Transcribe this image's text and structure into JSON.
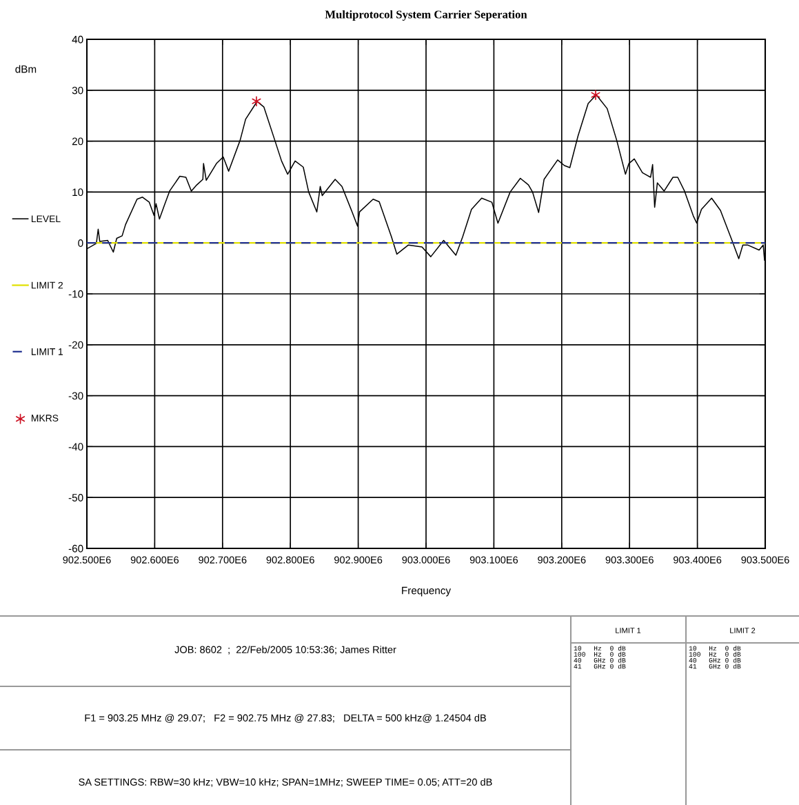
{
  "chart_data": {
    "type": "line",
    "title": "Multiprotocol System Carrier Seperation",
    "xlabel": "Frequency",
    "ylabel": "dBm",
    "xlim": [
      902500000,
      903500000
    ],
    "xticks": [
      {
        "value": 902500000,
        "label": "902.500E6"
      },
      {
        "value": 902600000,
        "label": "902.600E6"
      },
      {
        "value": 902700000,
        "label": "902.700E6"
      },
      {
        "value": 902800000,
        "label": "902.800E6"
      },
      {
        "value": 902900000,
        "label": "902.900E6"
      },
      {
        "value": 903000000,
        "label": "903.000E6"
      },
      {
        "value": 903100000,
        "label": "903.100E6"
      },
      {
        "value": 903200000,
        "label": "903.200E6"
      },
      {
        "value": 903300000,
        "label": "903.300E6"
      },
      {
        "value": 903400000,
        "label": "903.400E6"
      },
      {
        "value": 903500000,
        "label": "903.500E6"
      }
    ],
    "ylim": [
      -60,
      40
    ],
    "yticks": [
      -60,
      -50,
      -40,
      -30,
      -20,
      -10,
      0,
      10,
      20,
      30,
      40
    ],
    "grid": true,
    "legend": "left",
    "series": [
      {
        "name": "LEVEL",
        "color": "#000000",
        "line_style": "solid",
        "marker": "none",
        "x": [
          902500700,
          902514000,
          902516700,
          902519000,
          902530700,
          902539000,
          902544000,
          902552000,
          902557000,
          902574000,
          902582000,
          902592000,
          902599000,
          902602000,
          902607000,
          902614000,
          902622000,
          902637000,
          902646000,
          902654000,
          902662000,
          902671000,
          902672000,
          902676000,
          902691000,
          902701000,
          902709000,
          902726000,
          902734000,
          902751000,
          902761000,
          902777000,
          902787000,
          902796000,
          902807000,
          902819000,
          902827000,
          902839000,
          902844000,
          902847000,
          902866000,
          902876000,
          902891000,
          902899000,
          902902000,
          902922000,
          902931000,
          902949000,
          902957000,
          902974000,
          902994000,
          903007000,
          903026000,
          903044000,
          903054000,
          903067000,
          903082000,
          903097000,
          903106000,
          903124000,
          903139000,
          903151000,
          903157000,
          903166000,
          903174000,
          903194000,
          903204000,
          903212000,
          903224000,
          903239000,
          903251000,
          903267000,
          903281000,
          903294000,
          903299000,
          903307000,
          903319000,
          903331000,
          903334000,
          903337000,
          903341000,
          903351000,
          903364000,
          903371000,
          903381000,
          903394000,
          903399000,
          903406000,
          903421000,
          903434000,
          903451000,
          903461000,
          903467000,
          903474000,
          903491000,
          903497000,
          903499000
        ],
        "values": [
          -1.1,
          -0.1,
          2.7,
          0.3,
          0.5,
          -1.8,
          0.9,
          1.4,
          3.6,
          8.6,
          9.0,
          8.0,
          5.4,
          7.7,
          4.7,
          7.3,
          10.2,
          13.1,
          12.9,
          10.2,
          11.4,
          12.5,
          15.6,
          12.3,
          15.6,
          16.9,
          14.1,
          20.2,
          24.3,
          27.8,
          26.7,
          20.2,
          16.1,
          13.5,
          16.1,
          14.9,
          10.0,
          6.1,
          11.1,
          9.3,
          12.5,
          11.1,
          6.1,
          3.3,
          6.1,
          8.6,
          8.1,
          1.2,
          -2.2,
          -0.4,
          -0.8,
          -2.7,
          0.5,
          -2.4,
          1.2,
          6.6,
          8.8,
          8.0,
          3.9,
          10.0,
          12.7,
          11.4,
          10.0,
          6.0,
          12.5,
          16.3,
          15.2,
          14.8,
          21.0,
          27.4,
          29.1,
          26.4,
          20.2,
          13.5,
          15.6,
          16.5,
          13.8,
          12.9,
          15.4,
          7.0,
          11.8,
          10.2,
          12.9,
          12.9,
          10.2,
          5.3,
          3.9,
          6.6,
          8.8,
          6.4,
          0.5,
          -3.1,
          -0.4,
          -0.4,
          -1.4,
          -0.4,
          -3.4
        ]
      },
      {
        "name": "LIMIT 2",
        "color": "#e0e000",
        "line_style": "solid",
        "marker": "none",
        "x": [
          902500000,
          903500000
        ],
        "values": [
          0,
          0
        ]
      },
      {
        "name": "LIMIT 1",
        "color": "#1f2f8f",
        "line_style": "dashed",
        "marker": "none",
        "x": [
          902500000,
          903500000
        ],
        "values": [
          0,
          0
        ]
      },
      {
        "name": "MKRS",
        "color": "#cc1122",
        "type": "scatter",
        "marker": "cross",
        "x": [
          902750000,
          903250000
        ],
        "values": [
          27.83,
          29.07
        ]
      }
    ],
    "annotations": [
      "JOB: 8602  ;  22/Feb/2005 10:53:36; James Ritter",
      "F1 = 903.25 MHz @ 29.07;   F2 = 902.75 MHz @ 27.83;   DELTA = 500 kHz@ 1.24504 dB",
      "SA SETTINGS: RBW=30 kHz; VBW=10 kHz; SPAN=1MHz; SWEEP TIME= 0.05; ATT=20 dB",
      "LIMIT 1",
      "10   Hz  0 dB\n100  Hz  0 dB\n40   GHz 0 dB\n41   GHz 0 dB",
      "LIMIT 2",
      "10   Hz  0 dB\n100  Hz  0 dB\n40   GHz 0 dB\n41   GHz 0 dB"
    ]
  }
}
